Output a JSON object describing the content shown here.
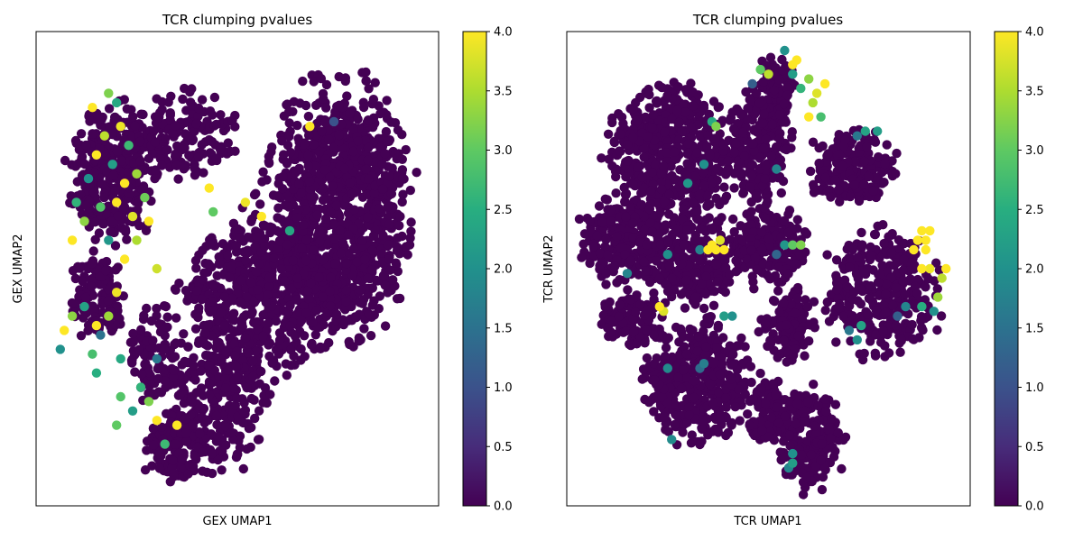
{
  "chart_data": [
    {
      "type": "scatter",
      "title": "TCR clumping pvalues",
      "xlabel": "GEX UMAP1",
      "ylabel": "GEX UMAP2",
      "xticks": "none",
      "yticks": "none",
      "colorbar": {
        "colormap": "viridis",
        "range": [
          0,
          4
        ],
        "ticks": [
          "0.0",
          "0.5",
          "1.0",
          "1.5",
          "2.0",
          "2.5",
          "3.0",
          "3.5",
          "4.0"
        ]
      },
      "background_value": 0,
      "blobs": [
        {
          "cx": 0.19,
          "cy": 0.7,
          "rx": 0.125,
          "ry": 0.17,
          "n": 380
        },
        {
          "cx": 0.15,
          "cy": 0.44,
          "rx": 0.075,
          "ry": 0.11,
          "n": 140
        },
        {
          "cx": 0.36,
          "cy": 0.78,
          "rx": 0.16,
          "ry": 0.11,
          "n": 170
        },
        {
          "cx": 0.75,
          "cy": 0.62,
          "rx": 0.21,
          "ry": 0.32,
          "n": 1100
        },
        {
          "cx": 0.55,
          "cy": 0.44,
          "rx": 0.22,
          "ry": 0.2,
          "n": 520
        },
        {
          "cx": 0.45,
          "cy": 0.22,
          "rx": 0.15,
          "ry": 0.16,
          "n": 260
        },
        {
          "cx": 0.35,
          "cy": 0.12,
          "rx": 0.1,
          "ry": 0.09,
          "n": 140
        },
        {
          "cx": 0.3,
          "cy": 0.32,
          "rx": 0.08,
          "ry": 0.12,
          "n": 100
        }
      ],
      "highlights": [
        {
          "x": 0.18,
          "y": 0.87,
          "value": 3.2
        },
        {
          "x": 0.2,
          "y": 0.85,
          "value": 2.4
        },
        {
          "x": 0.14,
          "y": 0.84,
          "value": 4.0
        },
        {
          "x": 0.21,
          "y": 0.8,
          "value": 3.9
        },
        {
          "x": 0.23,
          "y": 0.76,
          "value": 2.7
        },
        {
          "x": 0.17,
          "y": 0.78,
          "value": 3.6
        },
        {
          "x": 0.15,
          "y": 0.74,
          "value": 4.0
        },
        {
          "x": 0.19,
          "y": 0.72,
          "value": 2.2
        },
        {
          "x": 0.25,
          "y": 0.7,
          "value": 3.4
        },
        {
          "x": 0.22,
          "y": 0.68,
          "value": 4.0
        },
        {
          "x": 0.13,
          "y": 0.69,
          "value": 2.0
        },
        {
          "x": 0.27,
          "y": 0.65,
          "value": 3.1
        },
        {
          "x": 0.2,
          "y": 0.64,
          "value": 4.0
        },
        {
          "x": 0.16,
          "y": 0.63,
          "value": 2.9
        },
        {
          "x": 0.24,
          "y": 0.61,
          "value": 3.8
        },
        {
          "x": 0.28,
          "y": 0.6,
          "value": 4.0
        },
        {
          "x": 0.12,
          "y": 0.6,
          "value": 3.3
        },
        {
          "x": 0.1,
          "y": 0.64,
          "value": 2.6
        },
        {
          "x": 0.09,
          "y": 0.56,
          "value": 4.0
        },
        {
          "x": 0.25,
          "y": 0.56,
          "value": 3.5
        },
        {
          "x": 0.18,
          "y": 0.56,
          "value": 2.1
        },
        {
          "x": 0.22,
          "y": 0.52,
          "value": 4.0
        },
        {
          "x": 0.3,
          "y": 0.5,
          "value": 3.7
        },
        {
          "x": 0.44,
          "y": 0.62,
          "value": 3.0
        },
        {
          "x": 0.43,
          "y": 0.67,
          "value": 4.0
        },
        {
          "x": 0.56,
          "y": 0.61,
          "value": 4.0
        },
        {
          "x": 0.63,
          "y": 0.58,
          "value": 2.4
        },
        {
          "x": 0.52,
          "y": 0.64,
          "value": 3.9
        },
        {
          "x": 0.68,
          "y": 0.8,
          "value": 4.0
        },
        {
          "x": 0.74,
          "y": 0.81,
          "value": 1.0
        },
        {
          "x": 0.2,
          "y": 0.45,
          "value": 3.9
        },
        {
          "x": 0.15,
          "y": 0.38,
          "value": 4.0
        },
        {
          "x": 0.14,
          "y": 0.32,
          "value": 2.8
        },
        {
          "x": 0.18,
          "y": 0.4,
          "value": 3.4
        },
        {
          "x": 0.16,
          "y": 0.36,
          "value": 1.5
        },
        {
          "x": 0.12,
          "y": 0.42,
          "value": 2.3
        },
        {
          "x": 0.15,
          "y": 0.28,
          "value": 2.5
        },
        {
          "x": 0.09,
          "y": 0.4,
          "value": 3.3
        },
        {
          "x": 0.07,
          "y": 0.37,
          "value": 4.0
        },
        {
          "x": 0.06,
          "y": 0.33,
          "value": 2.0
        },
        {
          "x": 0.28,
          "y": 0.22,
          "value": 3.2
        },
        {
          "x": 0.26,
          "y": 0.25,
          "value": 2.6
        },
        {
          "x": 0.3,
          "y": 0.18,
          "value": 4.0
        },
        {
          "x": 0.24,
          "y": 0.2,
          "value": 2.2
        },
        {
          "x": 0.21,
          "y": 0.23,
          "value": 2.9
        },
        {
          "x": 0.35,
          "y": 0.17,
          "value": 4.0
        },
        {
          "x": 0.32,
          "y": 0.13,
          "value": 2.7
        },
        {
          "x": 0.2,
          "y": 0.17,
          "value": 3.0
        },
        {
          "x": 0.3,
          "y": 0.31,
          "value": 1.6
        },
        {
          "x": 0.21,
          "y": 0.31,
          "value": 2.4
        }
      ]
    },
    {
      "type": "scatter",
      "title": "TCR clumping pvalues",
      "xlabel": "TCR UMAP1",
      "ylabel": "TCR UMAP2",
      "xticks": "none",
      "yticks": "none",
      "colorbar": {
        "colormap": "viridis",
        "range": [
          0,
          4
        ],
        "ticks": [
          "0.0",
          "0.5",
          "1.0",
          "1.5",
          "2.0",
          "2.5",
          "3.0",
          "3.5",
          "4.0"
        ]
      },
      "background_value": 0,
      "blobs": [
        {
          "cx": 0.26,
          "cy": 0.74,
          "rx": 0.18,
          "ry": 0.18,
          "n": 540
        },
        {
          "cx": 0.14,
          "cy": 0.56,
          "rx": 0.12,
          "ry": 0.11,
          "n": 230
        },
        {
          "cx": 0.3,
          "cy": 0.52,
          "rx": 0.15,
          "ry": 0.12,
          "n": 270
        },
        {
          "cx": 0.48,
          "cy": 0.76,
          "rx": 0.09,
          "ry": 0.15,
          "n": 240
        },
        {
          "cx": 0.52,
          "cy": 0.88,
          "rx": 0.06,
          "ry": 0.08,
          "n": 90
        },
        {
          "cx": 0.71,
          "cy": 0.71,
          "rx": 0.13,
          "ry": 0.09,
          "n": 210
        },
        {
          "cx": 0.5,
          "cy": 0.55,
          "rx": 0.11,
          "ry": 0.1,
          "n": 180
        },
        {
          "cx": 0.78,
          "cy": 0.45,
          "rx": 0.16,
          "ry": 0.16,
          "n": 340
        },
        {
          "cx": 0.55,
          "cy": 0.38,
          "rx": 0.08,
          "ry": 0.09,
          "n": 120
        },
        {
          "cx": 0.16,
          "cy": 0.39,
          "rx": 0.09,
          "ry": 0.07,
          "n": 110
        },
        {
          "cx": 0.32,
          "cy": 0.26,
          "rx": 0.16,
          "ry": 0.15,
          "n": 420
        },
        {
          "cx": 0.6,
          "cy": 0.15,
          "rx": 0.1,
          "ry": 0.13,
          "n": 220
        },
        {
          "cx": 0.49,
          "cy": 0.2,
          "rx": 0.06,
          "ry": 0.1,
          "n": 90
        }
      ],
      "highlights": [
        {
          "x": 0.48,
          "y": 0.92,
          "value": 3.0
        },
        {
          "x": 0.5,
          "y": 0.91,
          "value": 3.6
        },
        {
          "x": 0.56,
          "y": 0.91,
          "value": 2.2
        },
        {
          "x": 0.57,
          "y": 0.94,
          "value": 4.0
        },
        {
          "x": 0.6,
          "y": 0.9,
          "value": 3.3
        },
        {
          "x": 0.62,
          "y": 0.87,
          "value": 3.8
        },
        {
          "x": 0.64,
          "y": 0.89,
          "value": 4.0
        },
        {
          "x": 0.61,
          "y": 0.85,
          "value": 3.5
        },
        {
          "x": 0.6,
          "y": 0.82,
          "value": 4.0
        },
        {
          "x": 0.58,
          "y": 0.88,
          "value": 2.6
        },
        {
          "x": 0.54,
          "y": 0.96,
          "value": 2.0
        },
        {
          "x": 0.46,
          "y": 0.89,
          "value": 1.2
        },
        {
          "x": 0.56,
          "y": 0.93,
          "value": 4.0
        },
        {
          "x": 0.63,
          "y": 0.82,
          "value": 2.8
        },
        {
          "x": 0.74,
          "y": 0.79,
          "value": 2.3
        },
        {
          "x": 0.77,
          "y": 0.79,
          "value": 2.2
        },
        {
          "x": 0.72,
          "y": 0.78,
          "value": 1.6
        },
        {
          "x": 0.36,
          "y": 0.81,
          "value": 2.4
        },
        {
          "x": 0.37,
          "y": 0.8,
          "value": 3.2
        },
        {
          "x": 0.34,
          "y": 0.72,
          "value": 2.0
        },
        {
          "x": 0.52,
          "y": 0.71,
          "value": 1.8
        },
        {
          "x": 0.87,
          "y": 0.56,
          "value": 4.0
        },
        {
          "x": 0.88,
          "y": 0.58,
          "value": 4.0
        },
        {
          "x": 0.86,
          "y": 0.54,
          "value": 4.0
        },
        {
          "x": 0.9,
          "y": 0.58,
          "value": 4.0
        },
        {
          "x": 0.89,
          "y": 0.54,
          "value": 4.0
        },
        {
          "x": 0.9,
          "y": 0.5,
          "value": 3.9
        },
        {
          "x": 0.88,
          "y": 0.5,
          "value": 4.0
        },
        {
          "x": 0.89,
          "y": 0.56,
          "value": 4.0
        },
        {
          "x": 0.92,
          "y": 0.44,
          "value": 3.4
        },
        {
          "x": 0.94,
          "y": 0.5,
          "value": 4.0
        },
        {
          "x": 0.93,
          "y": 0.48,
          "value": 3.6
        },
        {
          "x": 0.91,
          "y": 0.41,
          "value": 2.0
        },
        {
          "x": 0.88,
          "y": 0.42,
          "value": 2.5
        },
        {
          "x": 0.84,
          "y": 0.42,
          "value": 1.8
        },
        {
          "x": 0.82,
          "y": 0.4,
          "value": 1.2
        },
        {
          "x": 0.72,
          "y": 0.35,
          "value": 2.0
        },
        {
          "x": 0.7,
          "y": 0.37,
          "value": 1.6
        },
        {
          "x": 0.73,
          "y": 0.38,
          "value": 2.3
        },
        {
          "x": 0.36,
          "y": 0.55,
          "value": 4.0
        },
        {
          "x": 0.37,
          "y": 0.54,
          "value": 4.0
        },
        {
          "x": 0.38,
          "y": 0.56,
          "value": 3.8
        },
        {
          "x": 0.35,
          "y": 0.54,
          "value": 4.0
        },
        {
          "x": 0.39,
          "y": 0.54,
          "value": 4.0
        },
        {
          "x": 0.33,
          "y": 0.54,
          "value": 1.8
        },
        {
          "x": 0.25,
          "y": 0.53,
          "value": 2.0
        },
        {
          "x": 0.56,
          "y": 0.55,
          "value": 3.0
        },
        {
          "x": 0.58,
          "y": 0.55,
          "value": 3.2
        },
        {
          "x": 0.54,
          "y": 0.55,
          "value": 2.1
        },
        {
          "x": 0.23,
          "y": 0.42,
          "value": 4.0
        },
        {
          "x": 0.24,
          "y": 0.41,
          "value": 3.8
        },
        {
          "x": 0.39,
          "y": 0.4,
          "value": 2.2
        },
        {
          "x": 0.41,
          "y": 0.4,
          "value": 2.0
        },
        {
          "x": 0.33,
          "y": 0.29,
          "value": 1.4
        },
        {
          "x": 0.34,
          "y": 0.3,
          "value": 1.7
        },
        {
          "x": 0.25,
          "y": 0.29,
          "value": 1.9
        },
        {
          "x": 0.52,
          "y": 0.53,
          "value": 1.3
        },
        {
          "x": 0.56,
          "y": 0.09,
          "value": 2.2
        },
        {
          "x": 0.56,
          "y": 0.11,
          "value": 2.0
        },
        {
          "x": 0.55,
          "y": 0.08,
          "value": 1.8
        },
        {
          "x": 0.26,
          "y": 0.14,
          "value": 1.9
        },
        {
          "x": 0.3,
          "y": 0.68,
          "value": 2.1
        },
        {
          "x": 0.15,
          "y": 0.49,
          "value": 1.8
        }
      ]
    }
  ]
}
